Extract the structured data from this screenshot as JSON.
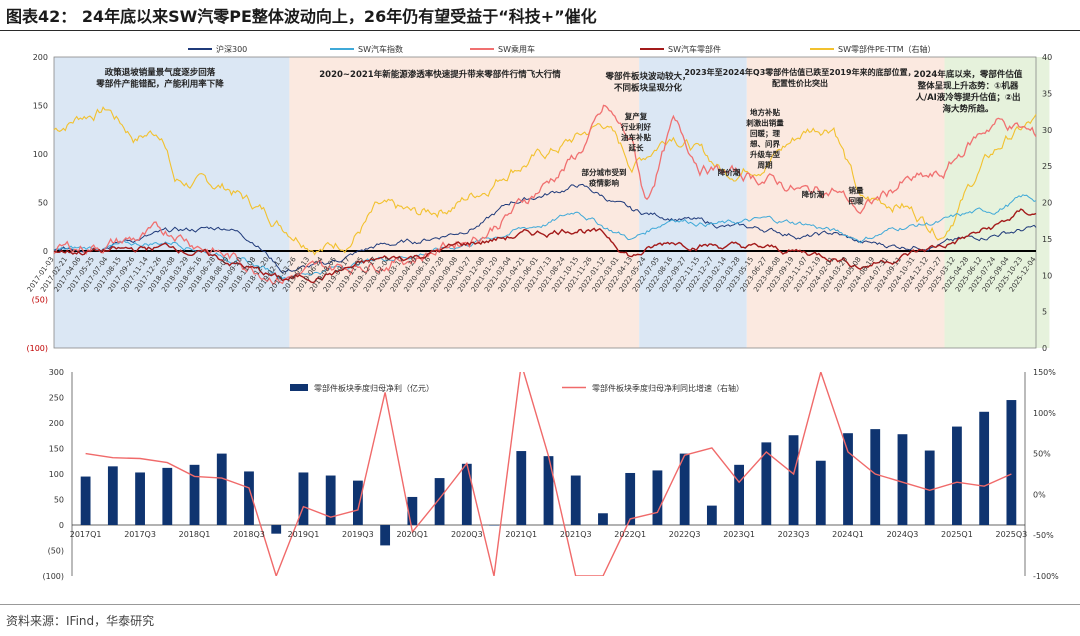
{
  "title": "图表42：  24年底以来SW汽零PE整体波动向上，26年仍有望受益于“科技+”催化",
  "footer": "资料来源：IFind，华泰研究",
  "colors": {
    "hs300": "#1f3a7a",
    "sw_auto": "#3fa9d8",
    "sw_pv": "#f07070",
    "sw_parts": "#a31a1a",
    "pe": "#f2c12e",
    "bar": "#0f3470",
    "growth": "#f06a6a",
    "region_blue": "#dbe7f4",
    "region_peach": "#fbe9e0",
    "region_green": "#e6f2dc"
  },
  "chart_data": [
    {
      "type": "line",
      "legend_position": "top",
      "left_axis": {
        "ylim": [
          -100,
          200
        ],
        "ticks": [
          "200",
          "150",
          "100",
          "50",
          "0",
          "(50)",
          "(100)"
        ]
      },
      "right_axis": {
        "ylim": [
          0,
          40
        ],
        "ticks": [
          "40",
          "35",
          "30",
          "25",
          "20",
          "15",
          "10",
          "5",
          "0"
        ]
      },
      "x_tick_labels": [
        "2017-01-03",
        "2017-02-21",
        "2017-04-06",
        "2017-05-25",
        "2017-07-04",
        "2017-08-15",
        "2017-09-26",
        "2017-11-14",
        "2017-12-26",
        "2018-02-08",
        "2018-03-29",
        "2018-05-16",
        "2018-06-28",
        "2018-08-09",
        "2018-09-20",
        "2018-11-08",
        "2018-12-20",
        "2019-02-12",
        "2019-03-26",
        "2019-05-13",
        "2019-06-24",
        "2019-08-05",
        "2019-09-17",
        "2019-11-05",
        "2019-12-17",
        "2020-02-04",
        "2020-03-17",
        "2020-04-29",
        "2020-06-16",
        "2020-07-28",
        "2020-09-08",
        "2020-10-27",
        "2020-12-08",
        "2021-01-20",
        "2021-03-04",
        "2021-04-21",
        "2021-06-01",
        "2021-07-13",
        "2021-08-24",
        "2021-10-15",
        "2021-11-26",
        "2022-01-12",
        "2022-03-01",
        "2022-04-13",
        "2022-05-24",
        "2022-07-05",
        "2022-08-16",
        "2022-09-27",
        "2022-11-15",
        "2022-12-27",
        "2023-02-14",
        "2023-03-28",
        "2023-05-15",
        "2023-06-27",
        "2023-08-08",
        "2023-09-19",
        "2023-11-07",
        "2023-12-19",
        "2024-02-01",
        "2024-03-20",
        "2024-05-08",
        "2024-06-19",
        "2024-07-31",
        "2024-09-11",
        "2024-10-31",
        "2024-12-12",
        "2025-01-27",
        "2025-03-12",
        "2025-04-28",
        "2025-06-12",
        "2025-07-24",
        "2025-09-04",
        "2025-10-23",
        "2025-12-04"
      ],
      "legend": [
        "沪深300",
        "SW汽车指数",
        "SW乘用车",
        "SW汽车零部件",
        "SW零部件PE-TTM（右轴）"
      ],
      "annotations": [
        "政策退坡销量景气度逐步回落 零部件产能错配，产能利用率下降",
        "2020~2021年新能源渗透率快速提升带来零部件行情飞大行情",
        "零部件板块波动较大，不同板块呈现分化",
        "2023年至2024年Q3零部件估值已跌至2019年来的底部位置，配置性价比突出",
        "2024年底以来，零部件估值整体呈现上升态势：①机器人/AI液冷等提升估值；②出海大势所趋。",
        "复产复行业利好油车补贴延长",
        "部分城市受到疫情影响",
        "地方补贴刺激出销量回暖；理想、问界升级车型 周期",
        "降价潮",
        "降价潮",
        "销量回暖"
      ],
      "pe_anchors": [
        [
          0,
          30
        ],
        [
          2,
          32
        ],
        [
          4,
          33
        ],
        [
          6,
          29
        ],
        [
          8,
          30
        ],
        [
          9,
          23
        ],
        [
          13,
          22
        ],
        [
          17,
          17
        ],
        [
          20,
          14
        ],
        [
          22,
          15
        ],
        [
          24,
          19
        ],
        [
          27,
          18
        ],
        [
          30,
          20
        ],
        [
          32,
          22
        ],
        [
          34,
          25
        ],
        [
          37,
          27
        ],
        [
          39,
          29
        ],
        [
          41,
          31
        ],
        [
          43,
          25
        ],
        [
          46,
          30
        ],
        [
          48,
          27
        ],
        [
          50,
          24
        ],
        [
          53,
          26
        ],
        [
          56,
          30
        ],
        [
          58,
          31
        ],
        [
          60,
          20
        ],
        [
          63,
          20
        ],
        [
          66,
          16
        ],
        [
          69,
          25
        ],
        [
          71,
          29
        ],
        [
          73,
          31
        ],
        [
          74,
          26
        ]
      ],
      "sw_pv_anchors": [
        [
          0,
          0
        ],
        [
          5,
          10
        ],
        [
          9,
          20
        ],
        [
          14,
          -12
        ],
        [
          17,
          -25
        ],
        [
          20,
          -20
        ],
        [
          24,
          -10
        ],
        [
          27,
          -5
        ],
        [
          30,
          10
        ],
        [
          32,
          20
        ],
        [
          34,
          40
        ],
        [
          37,
          75
        ],
        [
          39,
          100
        ],
        [
          41,
          145
        ],
        [
          43,
          110
        ],
        [
          44,
          50
        ],
        [
          46,
          130
        ],
        [
          48,
          90
        ],
        [
          50,
          80
        ],
        [
          53,
          75
        ],
        [
          56,
          60
        ],
        [
          58,
          65
        ],
        [
          60,
          40
        ],
        [
          63,
          70
        ],
        [
          66,
          75
        ],
        [
          68,
          110
        ],
        [
          70,
          135
        ],
        [
          72,
          125
        ],
        [
          74,
          110
        ]
      ],
      "hs300_anchors": [
        [
          0,
          0
        ],
        [
          5,
          10
        ],
        [
          9,
          20
        ],
        [
          13,
          25
        ],
        [
          15,
          10
        ],
        [
          17,
          -20
        ],
        [
          20,
          -15
        ],
        [
          24,
          5
        ],
        [
          27,
          10
        ],
        [
          30,
          20
        ],
        [
          32,
          30
        ],
        [
          34,
          50
        ],
        [
          37,
          60
        ],
        [
          39,
          68
        ],
        [
          41,
          55
        ],
        [
          43,
          40
        ],
        [
          46,
          35
        ],
        [
          48,
          30
        ],
        [
          50,
          25
        ],
        [
          53,
          22
        ],
        [
          56,
          15
        ],
        [
          58,
          18
        ],
        [
          60,
          8
        ],
        [
          63,
          5
        ],
        [
          66,
          8
        ],
        [
          68,
          12
        ],
        [
          70,
          18
        ],
        [
          72,
          22
        ],
        [
          74,
          25
        ]
      ],
      "sw_auto_anchors": [
        [
          0,
          0
        ],
        [
          5,
          5
        ],
        [
          9,
          10
        ],
        [
          14,
          -10
        ],
        [
          17,
          -25
        ],
        [
          20,
          -20
        ],
        [
          24,
          -8
        ],
        [
          27,
          -3
        ],
        [
          30,
          5
        ],
        [
          32,
          12
        ],
        [
          34,
          20
        ],
        [
          37,
          30
        ],
        [
          39,
          42
        ],
        [
          41,
          25
        ],
        [
          43,
          12
        ],
        [
          46,
          35
        ],
        [
          48,
          30
        ],
        [
          50,
          28
        ],
        [
          53,
          32
        ],
        [
          56,
          28
        ],
        [
          58,
          20
        ],
        [
          60,
          12
        ],
        [
          63,
          25
        ],
        [
          66,
          30
        ],
        [
          68,
          38
        ],
        [
          70,
          42
        ],
        [
          72,
          55
        ],
        [
          74,
          50
        ]
      ],
      "sw_parts_anchors": [
        [
          0,
          0
        ],
        [
          5,
          0
        ],
        [
          9,
          5
        ],
        [
          14,
          -15
        ],
        [
          17,
          -30
        ],
        [
          20,
          -25
        ],
        [
          24,
          -10
        ],
        [
          27,
          -5
        ],
        [
          30,
          5
        ],
        [
          32,
          10
        ],
        [
          34,
          15
        ],
        [
          37,
          20
        ],
        [
          39,
          25
        ],
        [
          41,
          15
        ],
        [
          43,
          -5
        ],
        [
          46,
          10
        ],
        [
          48,
          8
        ],
        [
          50,
          5
        ],
        [
          53,
          2
        ],
        [
          56,
          -2
        ],
        [
          58,
          -5
        ],
        [
          60,
          -15
        ],
        [
          63,
          -5
        ],
        [
          66,
          5
        ],
        [
          68,
          15
        ],
        [
          70,
          25
        ],
        [
          72,
          40
        ],
        [
          74,
          35
        ]
      ]
    },
    {
      "type": "bar",
      "ylim": [
        -100,
        300
      ],
      "left_ticks": [
        "300",
        "250",
        "200",
        "150",
        "100",
        "50",
        "0",
        "(50)",
        "(100)"
      ],
      "right_ylim": [
        -100,
        150
      ],
      "right_ticks": [
        "150%",
        "100%",
        "50%",
        "0%",
        "-50%",
        "-100%"
      ],
      "legend": [
        "零部件板块季度归母净利（亿元）",
        "零部件板块季度归母净利同比增速（右轴）"
      ],
      "categories": [
        "2017Q1",
        "2017Q2",
        "2017Q3",
        "2017Q4",
        "2018Q1",
        "2018Q2",
        "2018Q3",
        "2018Q4",
        "2019Q1",
        "2019Q2",
        "2019Q3",
        "2019Q4",
        "2020Q1",
        "2020Q2",
        "2020Q3",
        "2020Q4",
        "2021Q1",
        "2021Q2",
        "2021Q3",
        "2021Q4",
        "2022Q1",
        "2022Q2",
        "2022Q3",
        "2022Q4",
        "2023Q1",
        "2023Q2",
        "2023Q3",
        "2023Q4",
        "2024Q1",
        "2024Q2",
        "2024Q3",
        "2024Q4",
        "2025Q1",
        "2025Q2",
        "2025Q3"
      ],
      "tick_labels": [
        "2017Q1",
        "2017Q3",
        "2018Q1",
        "2018Q3",
        "2019Q1",
        "2019Q3",
        "2020Q1",
        "2020Q3",
        "2021Q1",
        "2021Q3",
        "2022Q1",
        "2022Q3",
        "2023Q1",
        "2023Q3",
        "2024Q1",
        "2024Q3",
        "2025Q1",
        "2025Q3"
      ],
      "values": [
        95,
        115,
        103,
        112,
        118,
        140,
        105,
        -17,
        103,
        97,
        87,
        -40,
        55,
        92,
        120,
        0,
        145,
        135,
        97,
        23,
        102,
        107,
        140,
        38,
        118,
        162,
        176,
        126,
        180,
        188,
        178,
        146,
        193,
        222,
        245
      ],
      "growth": [
        50,
        45,
        44,
        39,
        22,
        20,
        8,
        -100,
        -15,
        -28,
        -19,
        125,
        -46,
        -5,
        38,
        -100,
        160,
        47,
        -100,
        -100,
        -30,
        -22,
        48,
        57,
        15,
        52,
        25,
        150,
        52,
        25,
        15,
        5,
        15,
        10,
        25
      ]
    }
  ]
}
